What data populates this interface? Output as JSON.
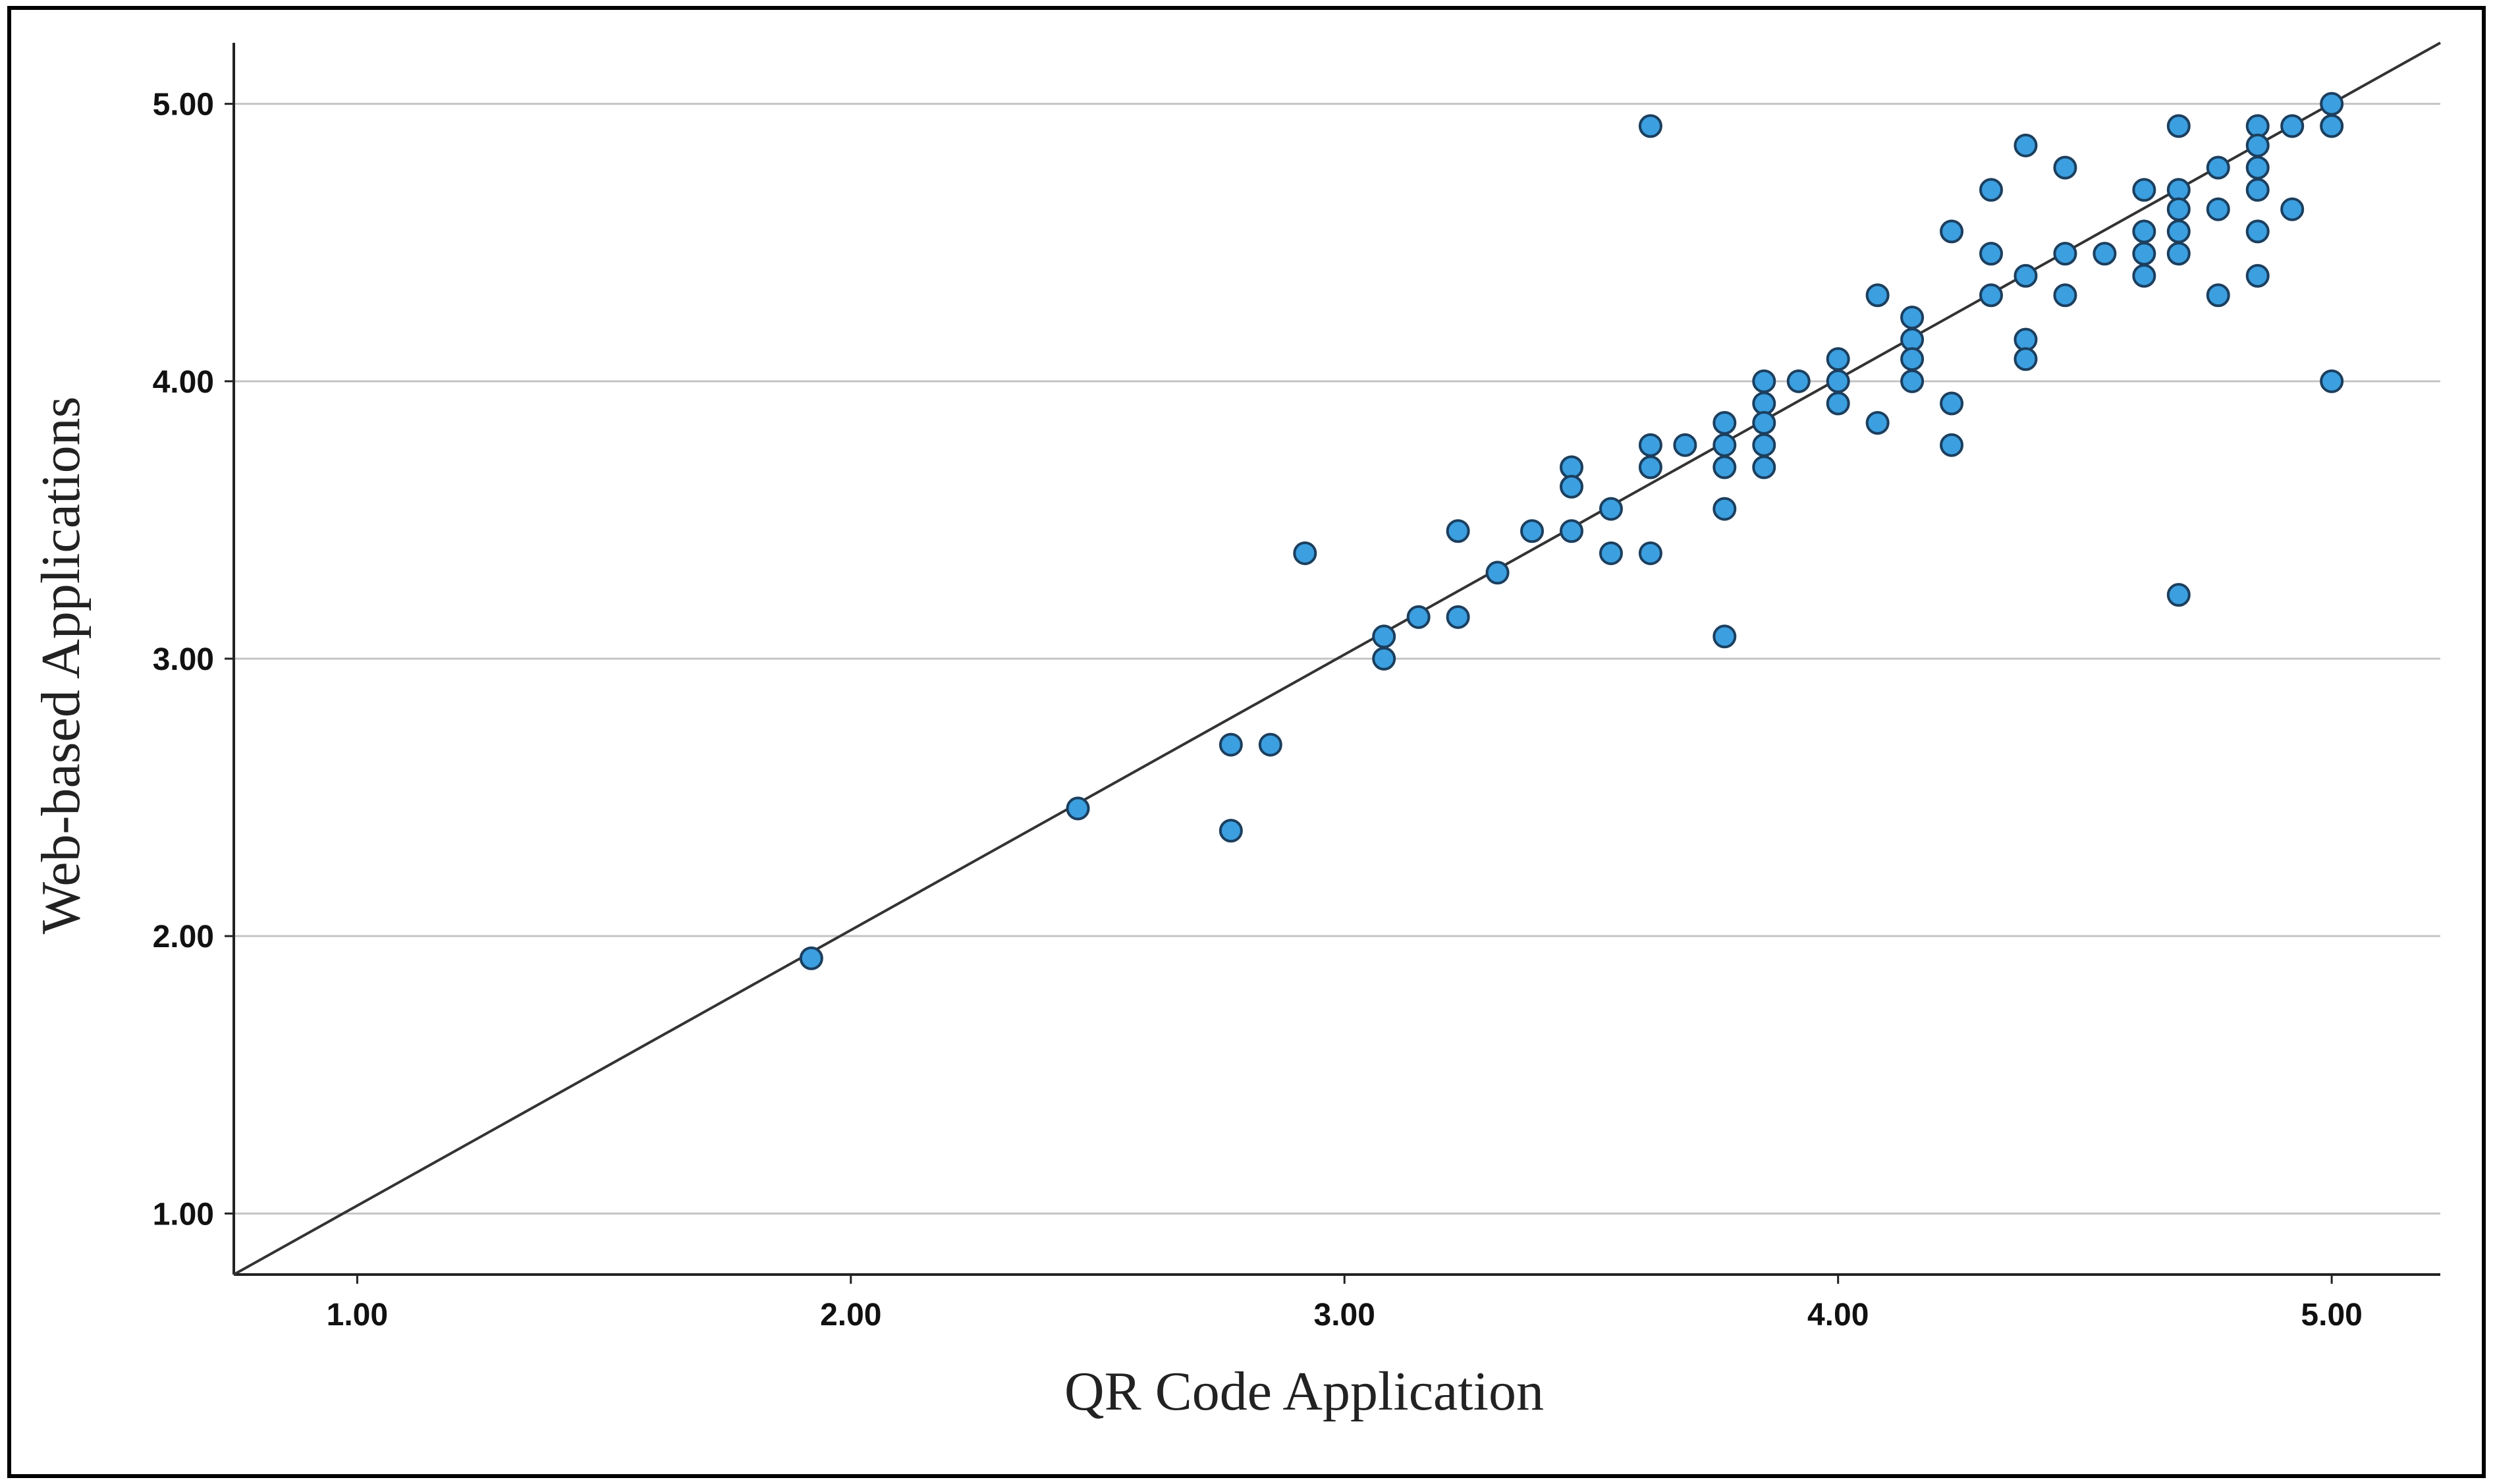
{
  "colors": {
    "background": "#ffffff",
    "frame": "#000000",
    "axis": "#222222",
    "grid": "#c4c4c4",
    "point_fill": "#3b9fe0",
    "point_stroke": "#1c3f5e",
    "fit_line": "#333333"
  },
  "chart_data": {
    "type": "scatter",
    "title": "",
    "xlabel": "QR Code Application",
    "ylabel": "Web-based Applications",
    "xlim": [
      0.75,
      5.22
    ],
    "ylim": [
      0.78,
      5.22
    ],
    "xticks": [
      1.0,
      2.0,
      3.0,
      4.0,
      5.0
    ],
    "yticks": [
      1.0,
      2.0,
      3.0,
      4.0,
      5.0
    ],
    "xtick_labels": [
      "1.00",
      "2.00",
      "3.00",
      "4.00",
      "5.00"
    ],
    "ytick_labels": [
      "1.00",
      "2.00",
      "3.00",
      "4.00",
      "5.00"
    ],
    "grid": "horizontal",
    "fit_line": {
      "from": [
        0.75,
        0.78
      ],
      "to": [
        5.22,
        5.22
      ]
    },
    "points": [
      [
        1.92,
        1.92
      ],
      [
        2.46,
        2.46
      ],
      [
        2.77,
        2.69
      ],
      [
        2.85,
        2.69
      ],
      [
        2.77,
        2.38
      ],
      [
        2.92,
        3.38
      ],
      [
        3.08,
        3.08
      ],
      [
        3.08,
        3.0
      ],
      [
        3.15,
        3.15
      ],
      [
        3.23,
        3.15
      ],
      [
        3.23,
        3.46
      ],
      [
        3.31,
        3.31
      ],
      [
        3.38,
        3.46
      ],
      [
        3.46,
        3.69
      ],
      [
        3.46,
        3.62
      ],
      [
        3.46,
        3.46
      ],
      [
        3.54,
        3.54
      ],
      [
        3.54,
        3.38
      ],
      [
        3.62,
        4.92
      ],
      [
        3.62,
        3.77
      ],
      [
        3.62,
        3.69
      ],
      [
        3.62,
        3.38
      ],
      [
        3.69,
        3.77
      ],
      [
        3.77,
        3.85
      ],
      [
        3.77,
        3.77
      ],
      [
        3.77,
        3.69
      ],
      [
        3.77,
        3.54
      ],
      [
        3.77,
        3.08
      ],
      [
        3.85,
        4.0
      ],
      [
        3.85,
        3.92
      ],
      [
        3.85,
        3.85
      ],
      [
        3.85,
        3.77
      ],
      [
        3.85,
        3.69
      ],
      [
        3.92,
        4.0
      ],
      [
        4.0,
        4.08
      ],
      [
        4.0,
        4.0
      ],
      [
        4.0,
        3.92
      ],
      [
        4.08,
        4.31
      ],
      [
        4.08,
        3.85
      ],
      [
        4.15,
        4.23
      ],
      [
        4.15,
        4.15
      ],
      [
        4.15,
        4.08
      ],
      [
        4.15,
        4.0
      ],
      [
        4.23,
        4.54
      ],
      [
        4.23,
        3.92
      ],
      [
        4.23,
        3.77
      ],
      [
        4.31,
        4.69
      ],
      [
        4.31,
        4.46
      ],
      [
        4.31,
        4.31
      ],
      [
        4.38,
        4.85
      ],
      [
        4.38,
        4.38
      ],
      [
        4.38,
        4.15
      ],
      [
        4.38,
        4.08
      ],
      [
        4.46,
        4.77
      ],
      [
        4.46,
        4.46
      ],
      [
        4.46,
        4.31
      ],
      [
        4.54,
        4.46
      ],
      [
        4.62,
        4.69
      ],
      [
        4.62,
        4.54
      ],
      [
        4.62,
        4.46
      ],
      [
        4.62,
        4.38
      ],
      [
        4.69,
        4.92
      ],
      [
        4.69,
        4.69
      ],
      [
        4.69,
        4.62
      ],
      [
        4.69,
        4.54
      ],
      [
        4.69,
        4.46
      ],
      [
        4.69,
        3.23
      ],
      [
        4.77,
        4.77
      ],
      [
        4.77,
        4.62
      ],
      [
        4.77,
        4.31
      ],
      [
        4.85,
        4.92
      ],
      [
        4.85,
        4.85
      ],
      [
        4.85,
        4.77
      ],
      [
        4.85,
        4.69
      ],
      [
        4.85,
        4.54
      ],
      [
        4.85,
        4.38
      ],
      [
        4.92,
        4.92
      ],
      [
        4.92,
        4.62
      ],
      [
        5.0,
        5.0
      ],
      [
        5.0,
        4.92
      ],
      [
        5.0,
        4.0
      ]
    ]
  }
}
